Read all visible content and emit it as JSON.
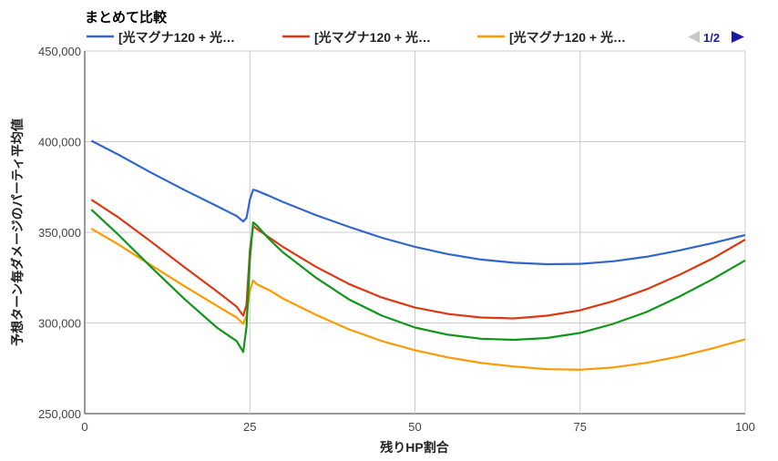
{
  "chart_data": {
    "type": "line",
    "title": "まとめて比較",
    "xlabel": "残りHP割合",
    "ylabel": "予想ターン毎ダメージのパーティ平均値",
    "xlim": [
      0,
      100
    ],
    "ylim": [
      250000,
      450000
    ],
    "xticks": [
      0,
      25,
      50,
      75,
      100
    ],
    "xtick_labels": [
      "0",
      "25",
      "50",
      "75",
      "100"
    ],
    "yticks": [
      250000,
      300000,
      350000,
      400000,
      450000
    ],
    "ytick_labels": [
      "250,000",
      "300,000",
      "350,000",
      "400,000",
      "450,000"
    ],
    "grid": true,
    "legend_position": "top",
    "legend_page": "1/2",
    "series": [
      {
        "name": "[光マグナ120 + 光…",
        "color": "#3366cc",
        "points": [
          [
            1,
            400500
          ],
          [
            5,
            393000
          ],
          [
            10,
            383000
          ],
          [
            15,
            373500
          ],
          [
            20,
            364500
          ],
          [
            23,
            359000
          ],
          [
            24,
            356000
          ],
          [
            24.5,
            358000
          ],
          [
            25,
            368000
          ],
          [
            25.5,
            373500
          ],
          [
            26,
            373000
          ],
          [
            28,
            370000
          ],
          [
            30,
            366800
          ],
          [
            35,
            359500
          ],
          [
            40,
            353000
          ],
          [
            45,
            347000
          ],
          [
            50,
            342000
          ],
          [
            55,
            338000
          ],
          [
            60,
            335000
          ],
          [
            65,
            333200
          ],
          [
            70,
            332400
          ],
          [
            75,
            332600
          ],
          [
            80,
            334000
          ],
          [
            85,
            336500
          ],
          [
            90,
            340000
          ],
          [
            95,
            344000
          ],
          [
            100,
            348500
          ]
        ]
      },
      {
        "name": "[光マグナ120 + 光…",
        "color": "#dc3912",
        "points": [
          [
            1,
            368000
          ],
          [
            5,
            358500
          ],
          [
            10,
            345000
          ],
          [
            15,
            331000
          ],
          [
            20,
            317500
          ],
          [
            23,
            309000
          ],
          [
            24,
            304000
          ],
          [
            24.5,
            310000
          ],
          [
            25,
            340000
          ],
          [
            25.5,
            353500
          ],
          [
            26,
            352000
          ],
          [
            28,
            347000
          ],
          [
            30,
            342000
          ],
          [
            35,
            331000
          ],
          [
            40,
            321500
          ],
          [
            45,
            314000
          ],
          [
            50,
            308500
          ],
          [
            55,
            305000
          ],
          [
            60,
            303000
          ],
          [
            65,
            302500
          ],
          [
            70,
            304000
          ],
          [
            75,
            307000
          ],
          [
            80,
            312000
          ],
          [
            85,
            318500
          ],
          [
            90,
            326500
          ],
          [
            95,
            335500
          ],
          [
            100,
            346000
          ]
        ]
      },
      {
        "name": "[光マグナ120 + 光…",
        "color": "#ff9900",
        "points": [
          [
            1,
            352000
          ],
          [
            5,
            343500
          ],
          [
            10,
            332000
          ],
          [
            15,
            320500
          ],
          [
            20,
            309500
          ],
          [
            23,
            303000
          ],
          [
            24,
            299500
          ],
          [
            24.5,
            304000
          ],
          [
            25,
            318000
          ],
          [
            25.5,
            323500
          ],
          [
            26,
            321500
          ],
          [
            28,
            318000
          ],
          [
            30,
            313500
          ],
          [
            35,
            304500
          ],
          [
            40,
            296500
          ],
          [
            45,
            290000
          ],
          [
            50,
            285000
          ],
          [
            55,
            281000
          ],
          [
            60,
            278000
          ],
          [
            65,
            276000
          ],
          [
            70,
            274500
          ],
          [
            75,
            274200
          ],
          [
            80,
            275500
          ],
          [
            85,
            278000
          ],
          [
            90,
            281500
          ],
          [
            95,
            286000
          ],
          [
            100,
            291000
          ]
        ]
      },
      {
        "name": "",
        "color": "#109618",
        "points": [
          [
            1,
            362500
          ],
          [
            5,
            349000
          ],
          [
            10,
            331000
          ],
          [
            15,
            313500
          ],
          [
            20,
            297500
          ],
          [
            23,
            290000
          ],
          [
            24,
            284000
          ],
          [
            24.5,
            298000
          ],
          [
            25,
            335000
          ],
          [
            25.5,
            355500
          ],
          [
            26,
            354000
          ],
          [
            28,
            346000
          ],
          [
            30,
            339000
          ],
          [
            35,
            325000
          ],
          [
            40,
            313000
          ],
          [
            45,
            304000
          ],
          [
            50,
            297500
          ],
          [
            55,
            293500
          ],
          [
            60,
            291300
          ],
          [
            65,
            290700
          ],
          [
            70,
            291700
          ],
          [
            75,
            294500
          ],
          [
            80,
            299500
          ],
          [
            85,
            306000
          ],
          [
            90,
            314500
          ],
          [
            95,
            324000
          ],
          [
            100,
            334500
          ]
        ]
      }
    ]
  }
}
